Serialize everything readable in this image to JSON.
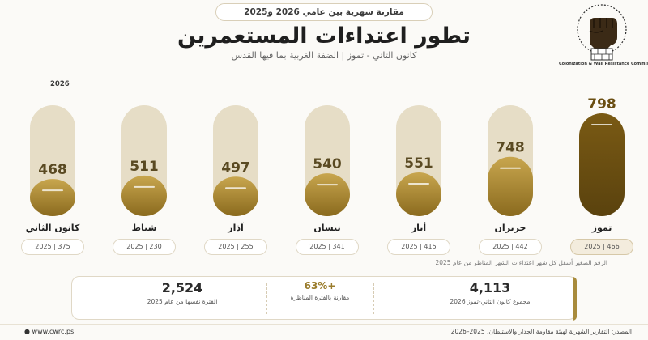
{
  "header": {
    "comparison_pill": "مقارنة شهرية بين عامي 2026 و2025",
    "title": "تطور اعتداءات المستعمرين",
    "subtitle": "كانون الثاني - تموز | الضفة الغربية بما فيها القدس"
  },
  "logo": {
    "caption": "Colonization & Wall Resistance Commission"
  },
  "chart_data": {
    "type": "bar",
    "series_label": "2026",
    "categories": [
      "كانون الثاني",
      "شباط",
      "آذار",
      "نيسان",
      "أيار",
      "حزيران",
      "تموز"
    ],
    "series": [
      {
        "name": "2026",
        "values": [
          468,
          511,
          497,
          540,
          551,
          748,
          798
        ]
      },
      {
        "name": "2025",
        "values": [
          375,
          230,
          255,
          341,
          415,
          442,
          466
        ]
      }
    ],
    "comparison_labels": [
      "2025 | 375",
      "2025 | 230",
      "2025 | 255",
      "2025 | 341",
      "2025 | 415",
      "2025 | 442",
      "2025 | 466"
    ],
    "ylim": [
      0,
      850
    ],
    "colors": {
      "bar_light": "#e6ddc6",
      "fill_top": "#c8a64e",
      "fill_bottom": "#8a6a1e",
      "highlight_top": "#7a5a14",
      "highlight_bottom": "#5a420e"
    }
  },
  "note": "الرقم الصغير أسفل كل شهر اعتداءات الشهر المناظر من عام 2025",
  "summary": {
    "total_value": "4,113",
    "total_label": "مجموع كانون الثاني-تموز 2026",
    "change_value": "+63%",
    "change_label": "مقارنة بالفترة المناظرة",
    "prev_value": "2,524",
    "prev_label": "الفترة نفسها من عام 2025"
  },
  "footer": {
    "website": "www.cwrc.ps",
    "source": "المصدر: التقارير الشهرية لهيئة مقاومة الجدار والاستيطان، 2025–2026"
  },
  "accent": "#a88b3c"
}
